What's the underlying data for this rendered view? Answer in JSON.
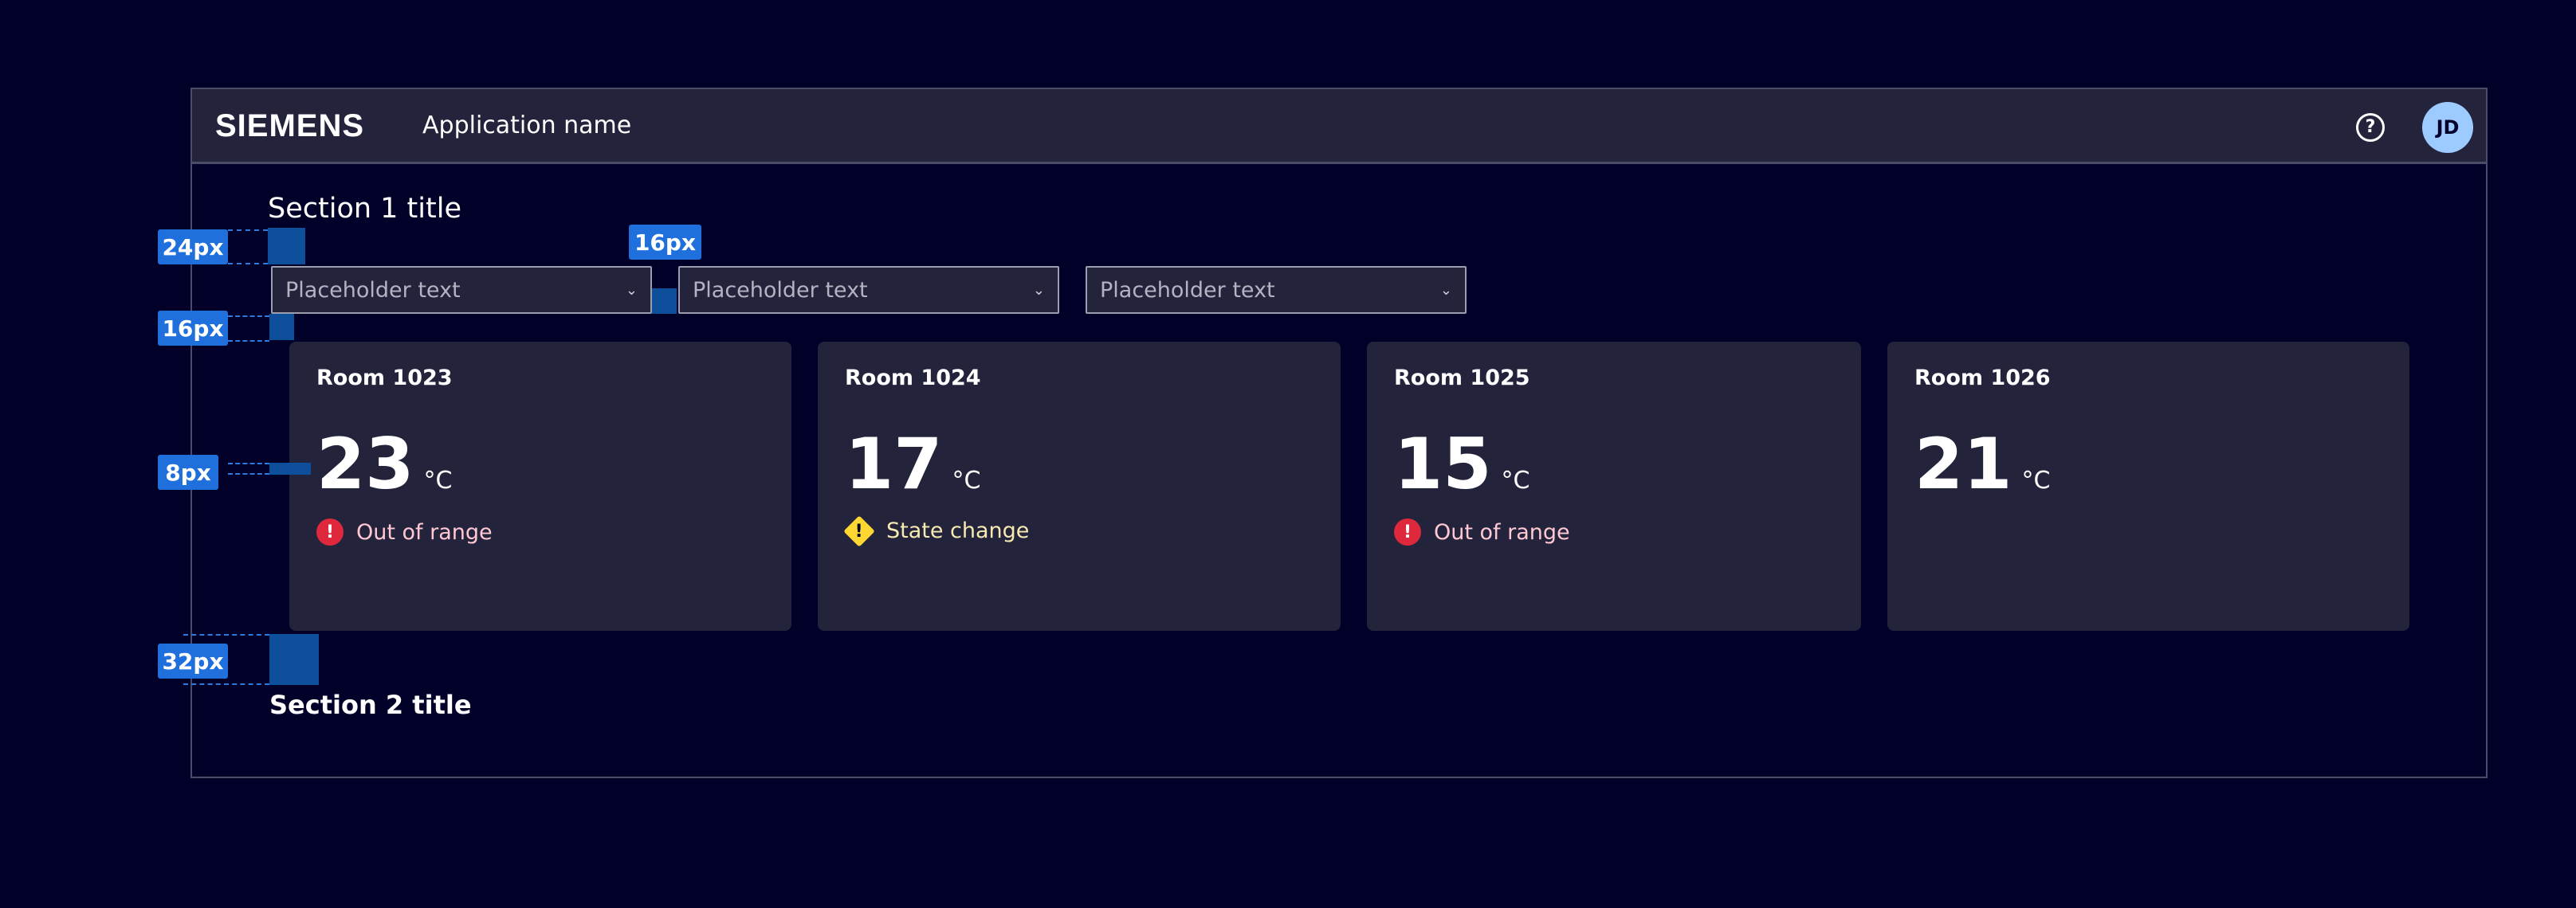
{
  "header": {
    "logo": "SIEMENS",
    "app_name": "Application name",
    "help_icon": "help-circle-icon",
    "avatar_initials": "JD"
  },
  "section1": {
    "title": "Section 1 title"
  },
  "section2": {
    "title": "Section 2 title"
  },
  "dropdowns": [
    {
      "placeholder": "Placeholder text"
    },
    {
      "placeholder": "Placeholder text"
    },
    {
      "placeholder": "Placeholder text"
    }
  ],
  "cards": [
    {
      "room": "Room 1023",
      "temp": "23",
      "unit": "°C",
      "status": "Out of range",
      "status_type": "error"
    },
    {
      "room": "Room 1024",
      "temp": "17",
      "unit": "°C",
      "status": "State change",
      "status_type": "warning"
    },
    {
      "room": "Room 1025",
      "temp": "15",
      "unit": "°C",
      "status": "Out of range",
      "status_type": "error"
    },
    {
      "room": "Room 1026",
      "temp": "21",
      "unit": "°C"
    }
  ],
  "annotations": [
    "24px",
    "16px",
    "16px",
    "8px",
    "32px"
  ],
  "colors": {
    "background": "#000028",
    "surface": "#23233c",
    "error": "#e0283c",
    "warning": "#ffd732",
    "annotation": "#1f6fdc",
    "avatar": "#9dcaff"
  }
}
